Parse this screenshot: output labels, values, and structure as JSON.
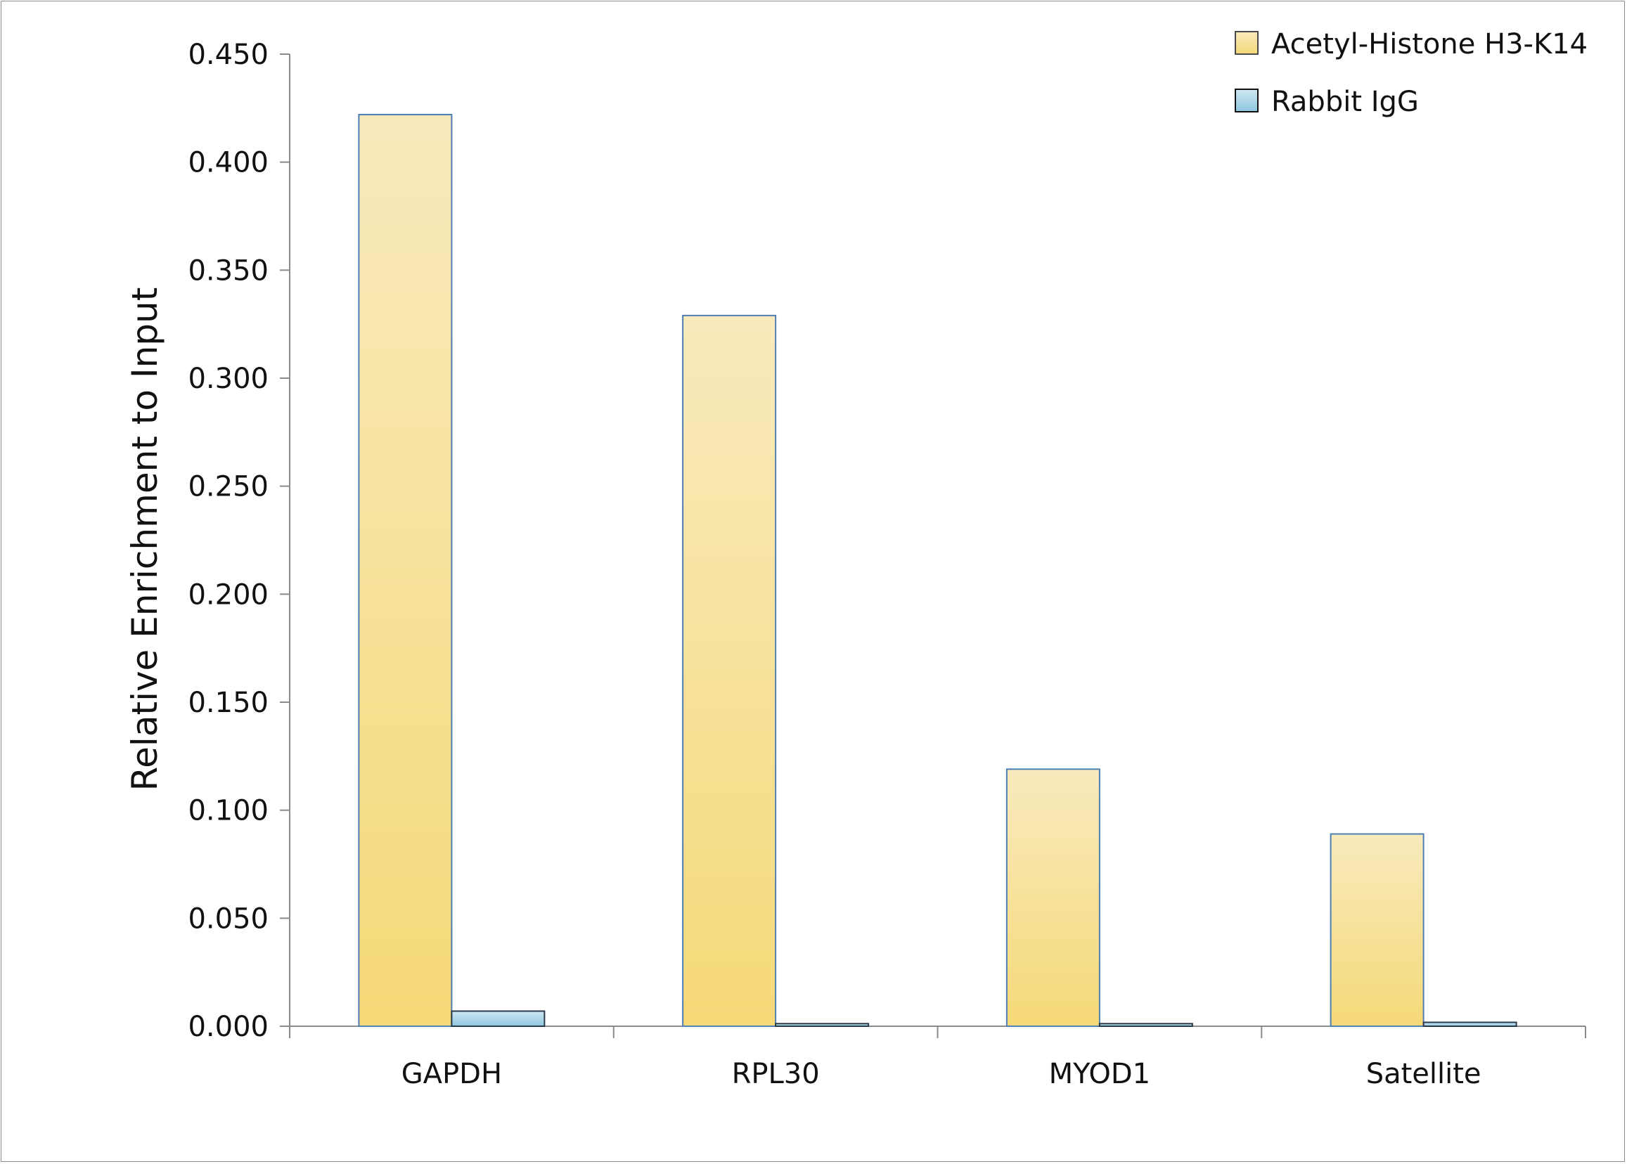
{
  "chart_data": {
    "type": "bar",
    "title": "",
    "xlabel": "",
    "ylabel": "Relative Enrichment to Input",
    "ylim": [
      0,
      0.45
    ],
    "yticks": [
      "0.000",
      "0.050",
      "0.100",
      "0.150",
      "0.200",
      "0.250",
      "0.300",
      "0.350",
      "0.400",
      "0.450"
    ],
    "categories": [
      "GAPDH",
      "RPL30",
      "MYOD1",
      "Satellite"
    ],
    "series": [
      {
        "name": "Acetyl-Histone H3-K14",
        "values": [
          0.422,
          0.329,
          0.119,
          0.089
        ],
        "color": "#f6d978"
      },
      {
        "name": "Rabbit IgG",
        "values": [
          0.007,
          0.0012,
          0.0012,
          0.0018
        ],
        "color": "#a9d3e6"
      }
    ],
    "grid": false,
    "legend_position": "top-right"
  }
}
